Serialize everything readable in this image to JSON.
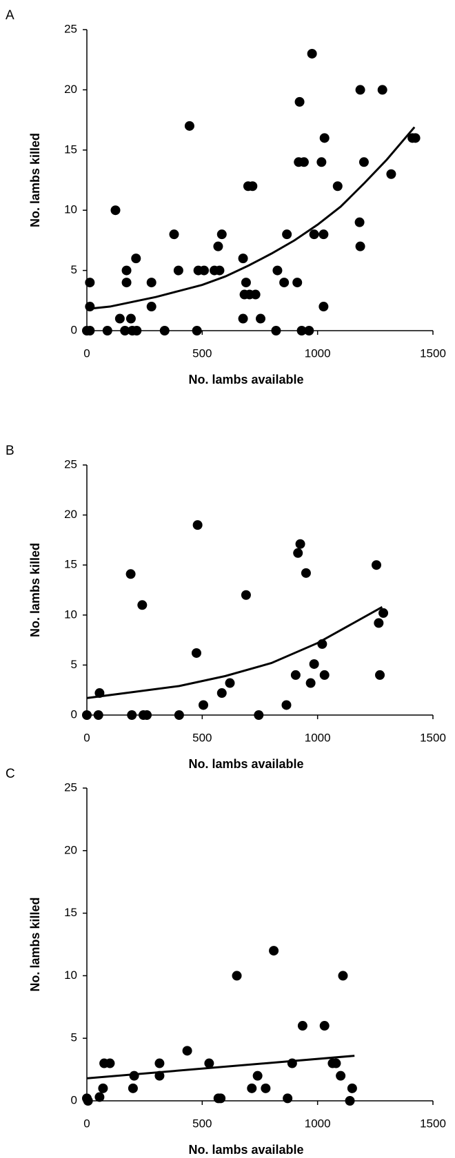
{
  "chart_data": [
    {
      "type": "scatter",
      "panel": "A",
      "xlabel": "No. lambs available",
      "ylabel": "No. lambs killed",
      "color": "#000000",
      "xlim": [
        0,
        1500
      ],
      "ylim": [
        0,
        25
      ],
      "xticks": [
        0,
        500,
        1000,
        1500
      ],
      "yticks": [
        0,
        5,
        10,
        15,
        20,
        25
      ],
      "x": [
        0,
        13,
        13,
        13,
        89,
        124,
        143,
        165,
        172,
        172,
        191,
        197,
        216,
        213,
        280,
        280,
        337,
        378,
        397,
        445,
        477,
        483,
        508,
        553,
        569,
        575,
        585,
        677,
        677,
        683,
        690,
        705,
        699,
        718,
        731,
        753,
        820,
        826,
        855,
        867,
        912,
        922,
        918,
        941,
        931,
        963,
        976,
        985,
        1017,
        1026,
        1026,
        1030,
        1087,
        1182,
        1185,
        1185,
        1201,
        1281,
        1319,
        1411,
        1424
      ],
      "y": [
        0,
        0,
        4,
        2,
        0,
        10,
        1,
        0,
        5,
        4,
        1,
        0,
        0,
        6,
        4,
        2,
        0,
        8,
        5,
        17,
        0,
        5,
        5,
        5,
        7,
        5,
        8,
        6,
        1,
        3,
        4,
        3,
        12,
        12,
        3,
        1,
        0,
        5,
        4,
        8,
        4,
        19,
        14,
        14,
        0,
        0,
        23,
        8,
        14,
        8,
        2,
        16,
        12,
        9,
        7,
        20,
        14,
        20,
        13,
        16,
        16
      ],
      "fit": {
        "x": [
          0,
          100,
          200,
          300,
          400,
          500,
          600,
          700,
          800,
          900,
          1000,
          1100,
          1200,
          1300,
          1420
        ],
        "y": [
          1.8,
          2.0,
          2.4,
          2.8,
          3.3,
          3.8,
          4.5,
          5.4,
          6.4,
          7.5,
          8.8,
          10.3,
          12.2,
          14.2,
          16.9
        ]
      }
    },
    {
      "type": "scatter",
      "panel": "B",
      "xlabel": "No. lambs available",
      "ylabel": "No. lambs killed",
      "color": "#000000",
      "xlim": [
        0,
        1500
      ],
      "ylim": [
        0,
        25
      ],
      "xticks": [
        0,
        500,
        1000,
        1500
      ],
      "yticks": [
        0,
        5,
        10,
        15,
        20,
        25
      ],
      "x": [
        0,
        55,
        50,
        190,
        195,
        240,
        245,
        260,
        400,
        475,
        480,
        505,
        585,
        620,
        690,
        745,
        865,
        905,
        915,
        925,
        950,
        970,
        985,
        1020,
        1030,
        1255,
        1265,
        1270,
        1285
      ],
      "y": [
        0,
        2.2,
        0,
        14.1,
        0,
        11,
        0,
        0,
        0,
        6.2,
        19,
        1,
        2.2,
        3.2,
        12,
        0,
        1,
        4,
        16.2,
        17.1,
        14.2,
        3.2,
        5.1,
        7.1,
        4,
        15,
        9.2,
        4,
        10.2
      ],
      "fit": {
        "x": [
          0,
          200,
          400,
          600,
          800,
          1000,
          1280
        ],
        "y": [
          1.7,
          2.3,
          2.9,
          3.9,
          5.2,
          7.2,
          10.8
        ]
      }
    },
    {
      "type": "scatter",
      "panel": "C",
      "xlabel": "No. lambs available",
      "ylabel": "No. lambs killed",
      "color": "#000000",
      "xlim": [
        0,
        1500
      ],
      "ylim": [
        0,
        25
      ],
      "xticks": [
        0,
        500,
        1000,
        1500
      ],
      "yticks": [
        0,
        5,
        10,
        15,
        20,
        25
      ],
      "x": [
        0,
        5,
        55,
        70,
        75,
        100,
        200,
        205,
        315,
        315,
        435,
        530,
        570,
        580,
        650,
        715,
        740,
        775,
        810,
        870,
        890,
        935,
        1030,
        1065,
        1080,
        1100,
        1110,
        1140,
        1150
      ],
      "y": [
        0.2,
        0,
        0.3,
        1,
        3,
        3,
        1,
        2,
        3,
        2,
        4,
        3,
        0.2,
        0.2,
        10,
        1,
        2,
        1,
        12,
        0.2,
        3,
        6,
        6,
        3,
        3,
        2,
        10,
        0,
        1
      ],
      "fit": {
        "x": [
          0,
          1160
        ],
        "y": [
          1.8,
          3.6
        ]
      }
    }
  ]
}
